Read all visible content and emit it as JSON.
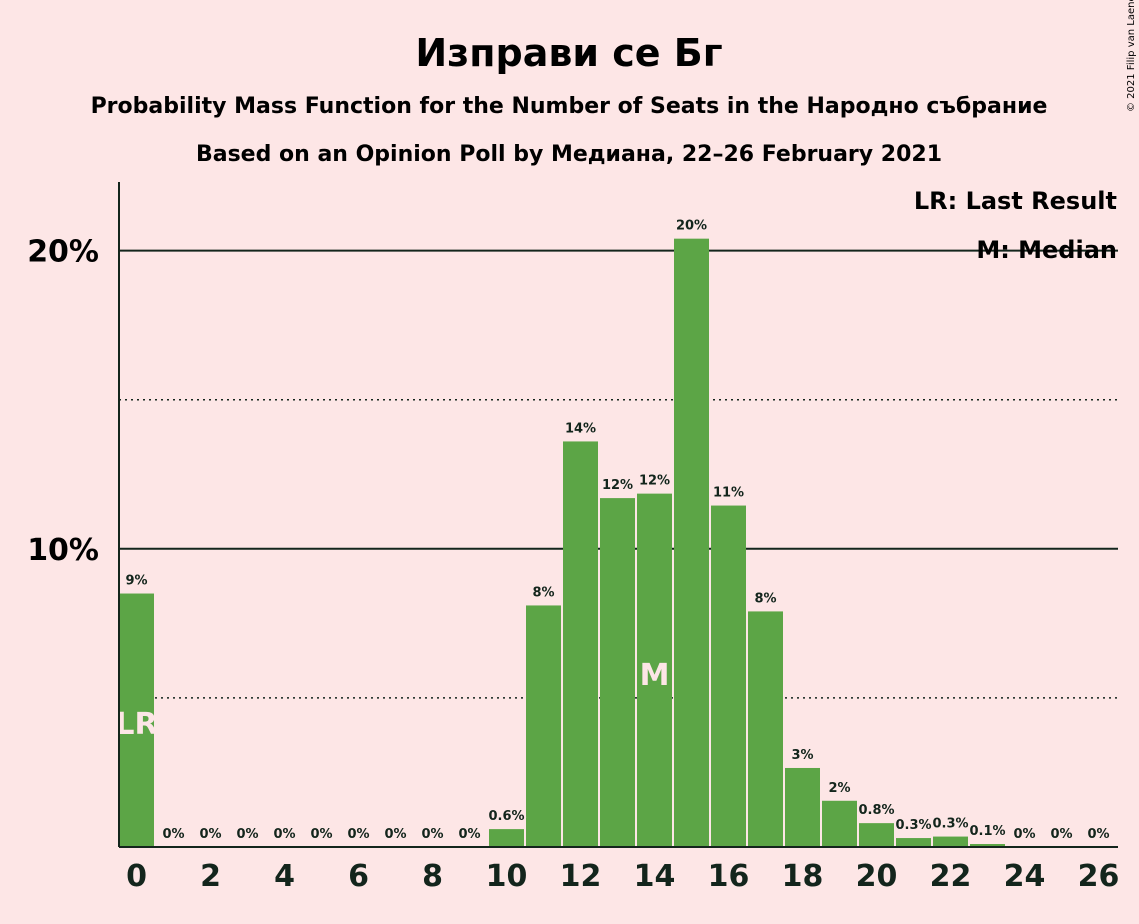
{
  "header": {
    "title": "Изправи се Бг",
    "subtitle1": "Probability Mass Function for the Number of Seats in the Народно събрание",
    "subtitle2": "Based on an Opinion Poll by Медиана, 22–26 February 2021"
  },
  "copyright": "© 2021 Filip van Laenen",
  "legend": {
    "last_result": "LR: Last Result",
    "median": "M: Median"
  },
  "colors": {
    "bar": "#5ca546",
    "background": "#fde6e6",
    "text": "#13251c"
  },
  "chart_data": {
    "type": "bar",
    "x": [
      0,
      1,
      2,
      3,
      4,
      5,
      6,
      7,
      8,
      9,
      10,
      11,
      12,
      13,
      14,
      15,
      16,
      17,
      18,
      19,
      20,
      21,
      22,
      23,
      24,
      25,
      26
    ],
    "values": [
      8.5,
      0,
      0,
      0,
      0,
      0,
      0,
      0,
      0,
      0,
      0.6,
      8.1,
      13.6,
      11.7,
      11.85,
      20.4,
      11.45,
      7.9,
      2.65,
      1.55,
      0.8,
      0.3,
      0.35,
      0.1,
      0,
      0,
      0
    ],
    "data_labels": [
      "9%",
      "0%",
      "0%",
      "0%",
      "0%",
      "0%",
      "0%",
      "0%",
      "0%",
      "0%",
      "0.6%",
      "8%",
      "14%",
      "12%",
      "12%",
      "20%",
      "11%",
      "8%",
      "3%",
      "2%",
      "0.8%",
      "0.3%",
      "0.3%",
      "0.1%",
      "0%",
      "0%",
      "0%"
    ],
    "x_tick_labels": [
      "0",
      "2",
      "4",
      "6",
      "8",
      "10",
      "12",
      "14",
      "16",
      "18",
      "20",
      "22",
      "24",
      "26"
    ],
    "y_ticks": [
      {
        "value": 10,
        "label": "10%"
      },
      {
        "value": 20,
        "label": "20%"
      }
    ],
    "y_minor_ticks": [
      5,
      15
    ],
    "ylim": [
      0,
      22.3
    ],
    "last_result_x": 0,
    "last_result_label": "LR",
    "median_x": 14,
    "median_label": "M",
    "grid": true,
    "legend_position": "top-right"
  }
}
